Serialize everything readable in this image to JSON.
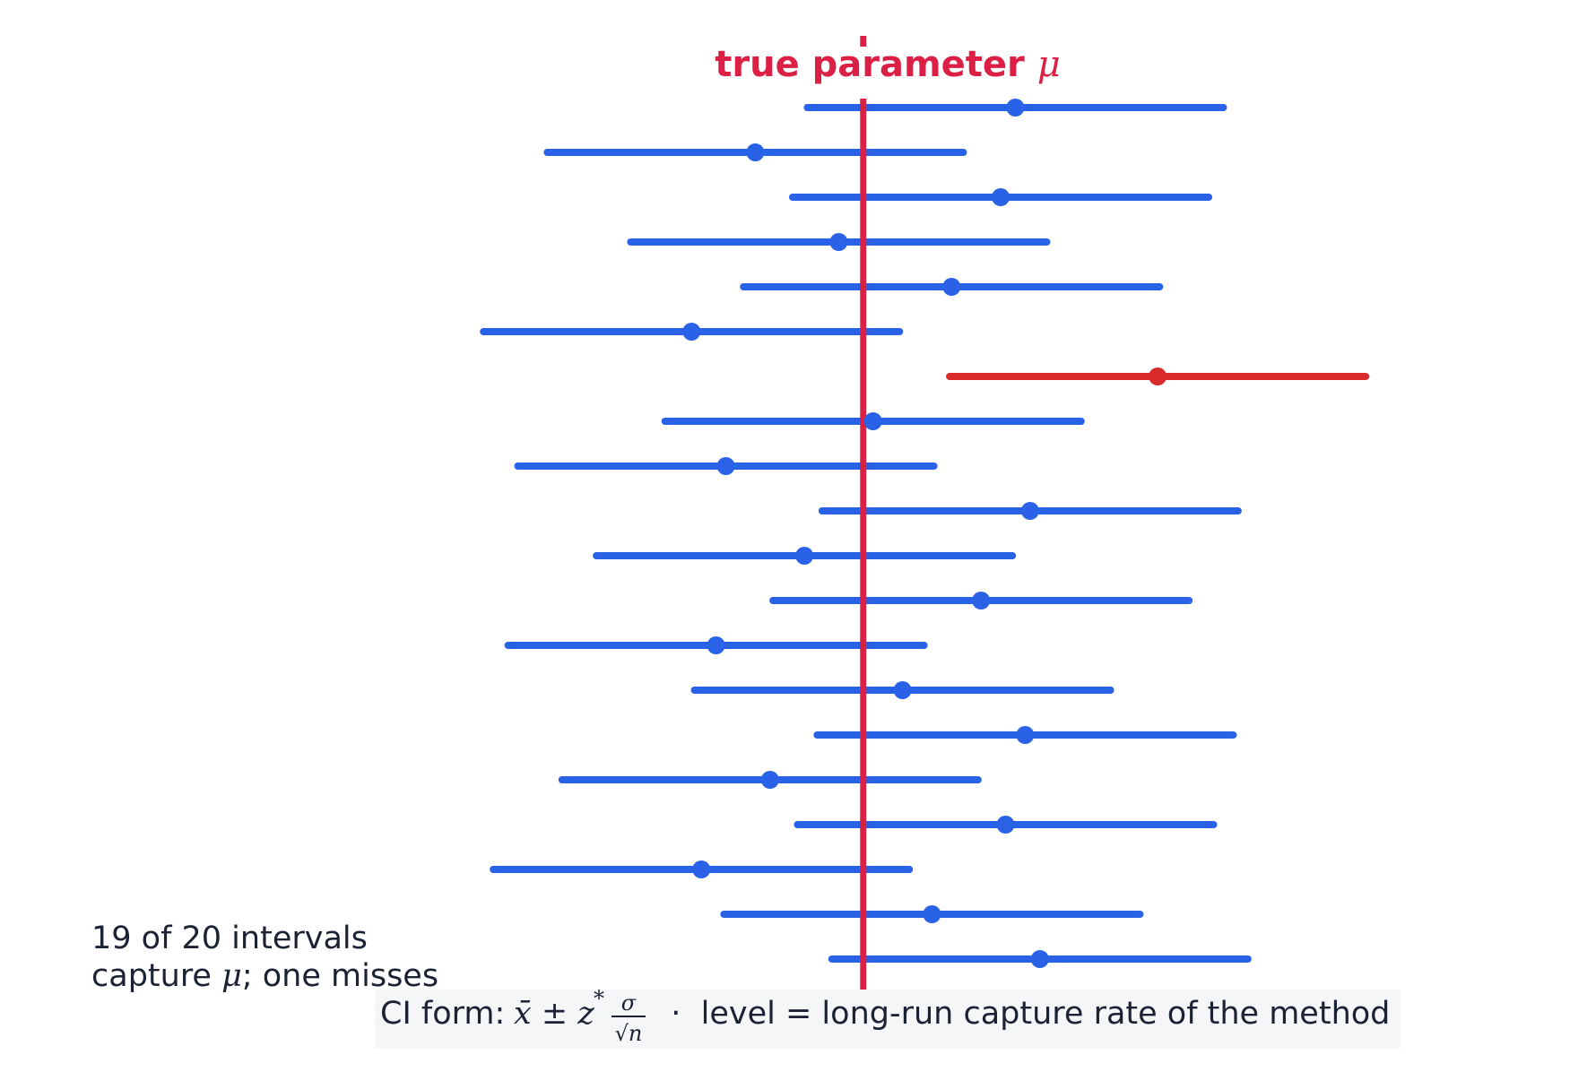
{
  "chart_data": {
    "type": "scatter",
    "title": "",
    "xlabel": "",
    "ylabel": "",
    "grid": false,
    "true_parameter": {
      "label": "true parameter",
      "symbol": "μ",
      "value": 0,
      "color": "#dc1f45"
    },
    "xlim": [
      -4.0,
      5.0
    ],
    "intervals": [
      {
        "center": 1.55,
        "lower": -0.57,
        "upper": 3.67,
        "captures": true
      },
      {
        "center": -1.1,
        "lower": -3.22,
        "upper": 1.02,
        "captures": true
      },
      {
        "center": 1.4,
        "lower": -0.72,
        "upper": 3.52,
        "captures": true
      },
      {
        "center": -0.25,
        "lower": -2.37,
        "upper": 1.87,
        "captures": true
      },
      {
        "center": 0.9,
        "lower": -1.22,
        "upper": 3.02,
        "captures": true
      },
      {
        "center": -1.75,
        "lower": -3.87,
        "upper": 0.37,
        "captures": true
      },
      {
        "center": 3.0,
        "lower": 0.88,
        "upper": 5.12,
        "captures": false
      },
      {
        "center": 0.1,
        "lower": -2.02,
        "upper": 2.22,
        "captures": true
      },
      {
        "center": -1.4,
        "lower": -3.52,
        "upper": 0.72,
        "captures": true
      },
      {
        "center": 1.7,
        "lower": -0.42,
        "upper": 3.82,
        "captures": true
      },
      {
        "center": -0.6,
        "lower": -2.72,
        "upper": 1.52,
        "captures": true
      },
      {
        "center": 1.2,
        "lower": -0.92,
        "upper": 3.32,
        "captures": true
      },
      {
        "center": -1.5,
        "lower": -3.62,
        "upper": 0.62,
        "captures": true
      },
      {
        "center": 0.4,
        "lower": -1.72,
        "upper": 2.52,
        "captures": true
      },
      {
        "center": 1.65,
        "lower": -0.47,
        "upper": 3.77,
        "captures": true
      },
      {
        "center": -0.95,
        "lower": -3.07,
        "upper": 1.17,
        "captures": true
      },
      {
        "center": 1.45,
        "lower": -0.67,
        "upper": 3.57,
        "captures": true
      },
      {
        "center": -1.65,
        "lower": -3.77,
        "upper": 0.47,
        "captures": true
      },
      {
        "center": 0.7,
        "lower": -1.42,
        "upper": 2.82,
        "captures": true
      },
      {
        "center": 1.8,
        "lower": -0.32,
        "upper": 3.92,
        "captures": true
      }
    ],
    "colors": {
      "capture": "#2962e6",
      "miss": "#d92b2b",
      "true_line": "#dc1f45",
      "text": "#1a2233",
      "formula_bg": "#f5f6f8"
    },
    "annotation": {
      "line1": "19 of 20 intervals",
      "line2_prefix": "capture ",
      "line2_symbol": "μ",
      "line2_suffix": "; one misses"
    },
    "footer": {
      "prefix": "CI form: ",
      "formula_main": "x̄ ± z",
      "formula_sup": "*",
      "frac_num": "σ",
      "frac_den": "√n",
      "suffix": "  ·  level = long-run capture rate of the method"
    }
  }
}
